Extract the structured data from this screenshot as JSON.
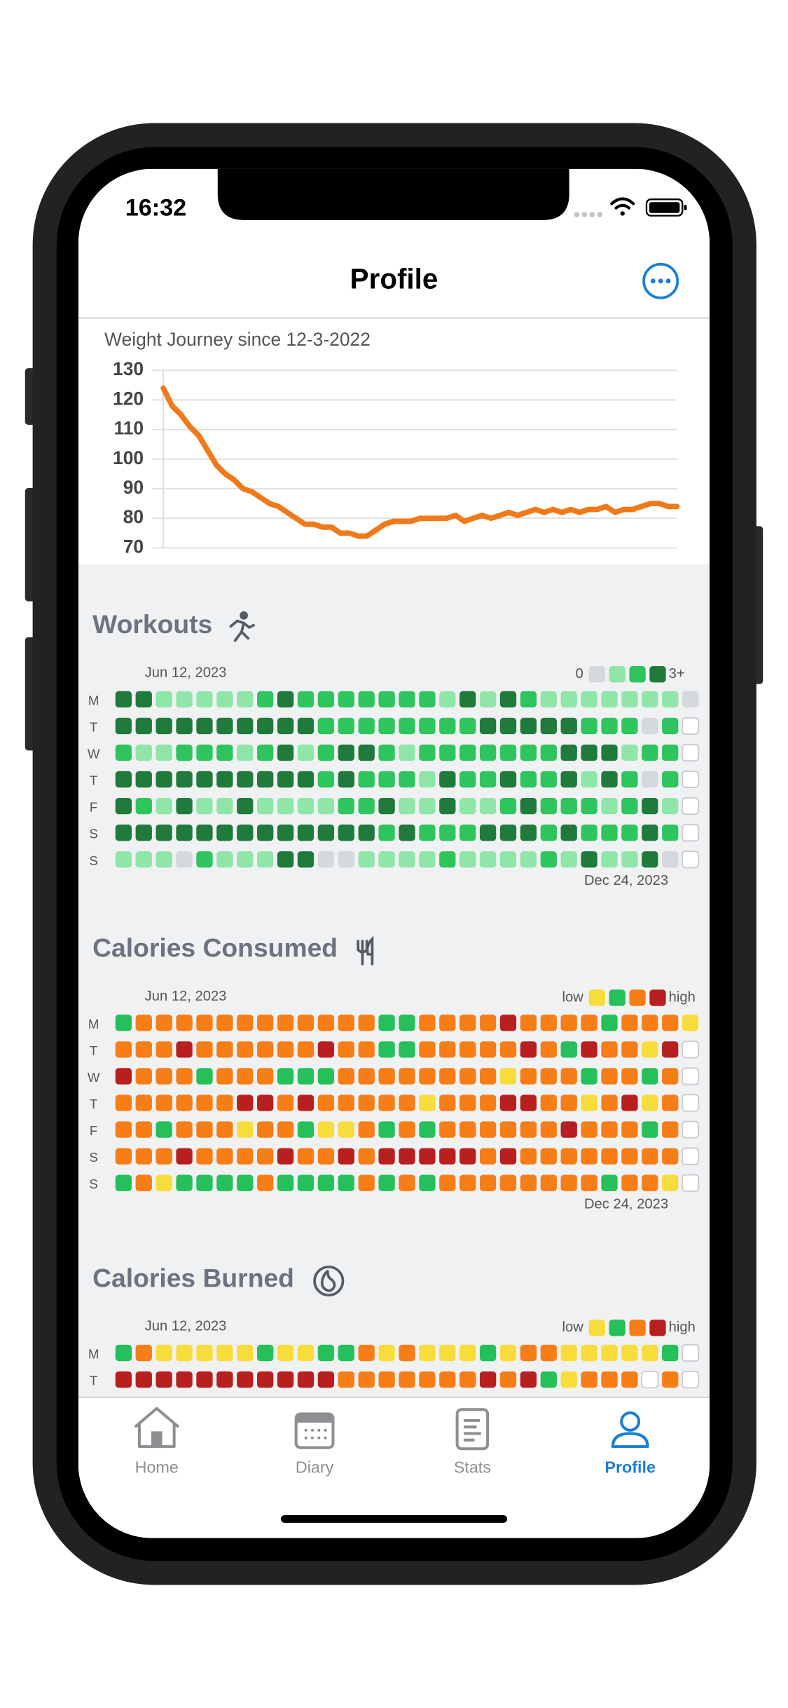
{
  "status_bar": {
    "time": "16:32"
  },
  "nav": {
    "title": "Profile"
  },
  "weight_chart": {
    "type": "line",
    "title": "Weight Journey since 12-3-2022",
    "values": [
      124,
      118,
      115,
      111,
      108,
      103,
      98,
      95,
      93,
      90,
      89,
      87,
      85,
      84,
      82,
      80,
      78,
      78,
      77,
      77,
      75,
      75,
      74,
      74,
      76,
      78,
      79,
      79,
      79,
      80,
      80,
      80,
      80,
      81,
      79,
      80,
      81,
      80,
      81,
      82,
      81,
      82,
      83,
      82,
      83,
      82,
      83,
      82,
      83,
      83,
      84,
      82,
      83,
      83,
      84,
      85,
      85,
      84,
      84
    ],
    "color": "#f07a1a",
    "ylim": [
      70,
      130
    ],
    "yticks": [
      70,
      80,
      90,
      100,
      110,
      120,
      130
    ],
    "grid": true
  },
  "weekday_labels": [
    "M",
    "T",
    "W",
    "T",
    "F",
    "S",
    "S"
  ],
  "heatmaps": [
    {
      "title": "Workouts",
      "start_label": "Jun 12, 2023",
      "end_label": "Dec 24, 2023",
      "legend_low": "0",
      "legend_high": "3+",
      "colors": [
        "#d5d8dd",
        "#8fe6a8",
        "#2ec55e",
        "#1f7a3b"
      ],
      "rows": [
        [
          3,
          3,
          1,
          1,
          1,
          1,
          1,
          2,
          3,
          2,
          2,
          2,
          2,
          2,
          2,
          2,
          1,
          3,
          1,
          3,
          2,
          1,
          1,
          1,
          1,
          1,
          1,
          1,
          0
        ],
        [
          3,
          3,
          3,
          3,
          3,
          3,
          3,
          3,
          3,
          3,
          2,
          2,
          2,
          2,
          2,
          2,
          2,
          2,
          3,
          3,
          3,
          3,
          3,
          2,
          2,
          2,
          0,
          2,
          null
        ],
        [
          2,
          1,
          1,
          2,
          2,
          2,
          1,
          2,
          3,
          1,
          2,
          3,
          3,
          2,
          1,
          2,
          2,
          2,
          2,
          2,
          2,
          2,
          3,
          3,
          3,
          1,
          2,
          2,
          null
        ],
        [
          3,
          3,
          3,
          3,
          3,
          3,
          3,
          3,
          3,
          3,
          2,
          3,
          2,
          2,
          2,
          1,
          3,
          2,
          2,
          3,
          2,
          2,
          3,
          1,
          3,
          2,
          0,
          2,
          null
        ],
        [
          3,
          2,
          1,
          3,
          1,
          1,
          3,
          1,
          1,
          1,
          1,
          2,
          2,
          3,
          1,
          1,
          3,
          1,
          1,
          2,
          3,
          2,
          2,
          2,
          1,
          2,
          3,
          1,
          null
        ],
        [
          3,
          3,
          3,
          3,
          3,
          3,
          3,
          3,
          3,
          3,
          3,
          3,
          3,
          2,
          3,
          2,
          2,
          2,
          3,
          3,
          3,
          2,
          3,
          2,
          2,
          2,
          3,
          2,
          null
        ],
        [
          1,
          1,
          1,
          0,
          2,
          1,
          1,
          1,
          3,
          3,
          0,
          0,
          1,
          1,
          1,
          1,
          2,
          1,
          1,
          1,
          1,
          2,
          1,
          3,
          1,
          1,
          3,
          0,
          null
        ]
      ]
    },
    {
      "title": "Calories Consumed",
      "start_label": "Jun 12, 2023",
      "end_label": "Dec 24, 2023",
      "legend_low": "low",
      "legend_high": "high",
      "colors": [
        "#f8dc3c",
        "#25c05a",
        "#f77d16",
        "#b81f1f"
      ],
      "rows": [
        [
          1,
          2,
          2,
          2,
          2,
          2,
          2,
          2,
          2,
          2,
          2,
          2,
          2,
          1,
          1,
          2,
          2,
          2,
          2,
          3,
          2,
          2,
          2,
          2,
          1,
          2,
          2,
          2,
          0
        ],
        [
          2,
          2,
          2,
          3,
          2,
          2,
          2,
          2,
          2,
          2,
          3,
          2,
          2,
          1,
          1,
          2,
          2,
          2,
          2,
          2,
          3,
          2,
          1,
          3,
          2,
          2,
          0,
          3,
          null
        ],
        [
          3,
          2,
          2,
          2,
          1,
          2,
          2,
          2,
          1,
          1,
          1,
          2,
          2,
          2,
          2,
          2,
          2,
          2,
          2,
          0,
          2,
          2,
          2,
          1,
          2,
          2,
          1,
          2,
          null
        ],
        [
          2,
          2,
          2,
          2,
          2,
          2,
          3,
          3,
          2,
          3,
          2,
          2,
          2,
          2,
          2,
          0,
          2,
          2,
          2,
          3,
          3,
          2,
          2,
          0,
          2,
          3,
          0,
          2,
          null
        ],
        [
          2,
          2,
          1,
          2,
          2,
          2,
          0,
          2,
          2,
          1,
          0,
          0,
          2,
          1,
          2,
          1,
          2,
          2,
          2,
          2,
          2,
          2,
          3,
          2,
          2,
          2,
          1,
          2,
          null
        ],
        [
          2,
          2,
          2,
          3,
          2,
          2,
          2,
          2,
          3,
          2,
          2,
          3,
          2,
          3,
          3,
          3,
          3,
          3,
          2,
          3,
          2,
          2,
          2,
          2,
          2,
          2,
          2,
          2,
          null
        ],
        [
          1,
          2,
          0,
          1,
          1,
          1,
          1,
          2,
          1,
          1,
          1,
          1,
          2,
          1,
          2,
          1,
          2,
          2,
          2,
          2,
          2,
          2,
          2,
          2,
          1,
          2,
          2,
          0,
          null
        ]
      ]
    },
    {
      "title": "Calories Burned",
      "start_label": "Jun 12, 2023",
      "legend_low": "low",
      "legend_high": "high",
      "colors": [
        "#f8dc3c",
        "#25c05a",
        "#f77d16",
        "#b81f1f"
      ],
      "rows": [
        [
          1,
          2,
          0,
          0,
          0,
          0,
          0,
          1,
          0,
          0,
          1,
          1,
          2,
          0,
          2,
          0,
          0,
          0,
          1,
          0,
          2,
          2,
          0,
          0,
          0,
          0,
          0,
          1,
          null
        ],
        [
          3,
          3,
          3,
          3,
          3,
          3,
          3,
          3,
          3,
          3,
          3,
          2,
          2,
          2,
          2,
          2,
          2,
          2,
          3,
          2,
          3,
          1,
          0,
          2,
          2,
          2,
          null,
          2,
          null
        ]
      ]
    }
  ],
  "tabs": [
    {
      "label": "Home"
    },
    {
      "label": "Diary"
    },
    {
      "label": "Stats"
    },
    {
      "label": "Profile"
    }
  ]
}
